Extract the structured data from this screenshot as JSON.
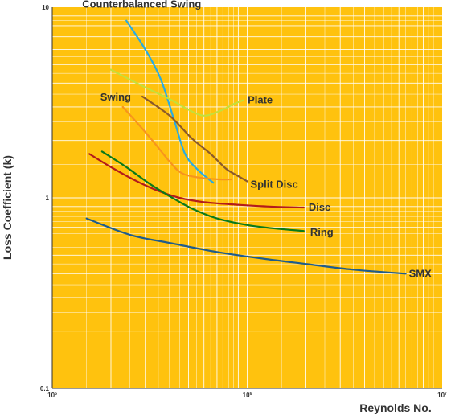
{
  "chart_data": {
    "type": "line",
    "x_scale": "log",
    "y_scale": "log",
    "xlabel": "Reynolds No.",
    "ylabel": "Loss Coefficient (k)",
    "xlim": [
      100000,
      10000000
    ],
    "ylim": [
      0.1,
      10
    ],
    "x_ticks": [
      {
        "value": 100000,
        "base": "10",
        "exp": "5"
      },
      {
        "value": 1000000,
        "base": "10",
        "exp": "6"
      },
      {
        "value": 10000000,
        "base": "10",
        "exp": "7"
      }
    ],
    "y_ticks": [
      {
        "value": 10,
        "label": "10"
      },
      {
        "value": 1,
        "label": "1"
      },
      {
        "value": 0.1,
        "label": "0.1"
      }
    ],
    "grid": true,
    "background_color": "#FFC20E",
    "grid_color": "#FFFFFF",
    "series": [
      {
        "name": "Counterbalanced Swing",
        "color": "#29ABE2",
        "points": [
          [
            240000,
            8.5
          ],
          [
            300000,
            6.0
          ],
          [
            360000,
            4.2
          ],
          [
            420000,
            2.6
          ],
          [
            480000,
            1.7
          ],
          [
            560000,
            1.4
          ],
          [
            670000,
            1.2
          ]
        ]
      },
      {
        "name": "Plate",
        "color": "#C4E03A",
        "points": [
          [
            200000,
            4.7
          ],
          [
            300000,
            3.8
          ],
          [
            400000,
            3.3
          ],
          [
            500000,
            2.9
          ],
          [
            600000,
            2.7
          ],
          [
            720000,
            2.85
          ],
          [
            850000,
            3.1
          ],
          [
            950000,
            3.25
          ]
        ]
      },
      {
        "name": "Swing",
        "color": "#F7941D",
        "points": [
          [
            230000,
            3.0
          ],
          [
            280000,
            2.4
          ],
          [
            340000,
            1.9
          ],
          [
            400000,
            1.55
          ],
          [
            460000,
            1.35
          ],
          [
            560000,
            1.28
          ],
          [
            720000,
            1.25
          ],
          [
            830000,
            1.25
          ]
        ]
      },
      {
        "name": "Split Disc",
        "color": "#8B5A2B",
        "points": [
          [
            290000,
            3.4
          ],
          [
            400000,
            2.7
          ],
          [
            520000,
            2.05
          ],
          [
            650000,
            1.7
          ],
          [
            780000,
            1.42
          ],
          [
            900000,
            1.3
          ],
          [
            1000000,
            1.22
          ]
        ]
      },
      {
        "name": "Disc",
        "color": "#B31B1B",
        "points": [
          [
            155000,
            1.7
          ],
          [
            200000,
            1.45
          ],
          [
            260000,
            1.25
          ],
          [
            340000,
            1.1
          ],
          [
            450000,
            1.0
          ],
          [
            600000,
            0.95
          ],
          [
            900000,
            0.92
          ],
          [
            1300000,
            0.9
          ],
          [
            1950000,
            0.89
          ]
        ]
      },
      {
        "name": "Ring",
        "color": "#0A7A1A",
        "points": [
          [
            180000,
            1.75
          ],
          [
            240000,
            1.45
          ],
          [
            310000,
            1.2
          ],
          [
            400000,
            1.02
          ],
          [
            520000,
            0.88
          ],
          [
            700000,
            0.78
          ],
          [
            1000000,
            0.72
          ],
          [
            1400000,
            0.69
          ],
          [
            1950000,
            0.67
          ]
        ]
      },
      {
        "name": "SMX",
        "color": "#1F5C8C",
        "points": [
          [
            150000,
            0.78
          ],
          [
            250000,
            0.64
          ],
          [
            400000,
            0.58
          ],
          [
            700000,
            0.52
          ],
          [
            1200000,
            0.48
          ],
          [
            2000000,
            0.45
          ],
          [
            3500000,
            0.42
          ],
          [
            6500000,
            0.4
          ]
        ]
      }
    ]
  }
}
